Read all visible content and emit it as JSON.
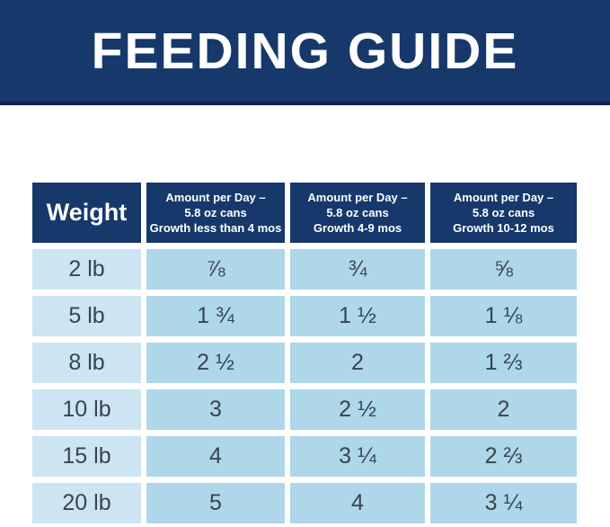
{
  "page": {
    "title": "FEEDING GUIDE"
  },
  "colors": {
    "banner_navy": "#16386b",
    "banner_rule_dark_navy": "#0d2447",
    "header_cell_navy": "#16386b",
    "header_text": "#ffffff",
    "weight_cell_light_blue": "#cde5f2",
    "data_cell_blue": "#aed7e9",
    "cell_text": "#36454e"
  },
  "table": {
    "header": {
      "weight_label": "Weight",
      "columns": [
        {
          "lines": [
            "Amount per Day –",
            "5.8 oz cans",
            "Growth less than 4 mos"
          ]
        },
        {
          "lines": [
            "Amount per Day –",
            "5.8 oz cans",
            "Growth 4-9 mos"
          ]
        },
        {
          "lines": [
            "Amount per Day –",
            "5.8 oz cans",
            "Growth 10-12 mos"
          ]
        }
      ]
    },
    "rows": [
      {
        "weight": "2 lb",
        "values": [
          "⅞",
          "¾",
          "⅝"
        ]
      },
      {
        "weight": "5 lb",
        "values": [
          "1 ¾",
          "1 ½",
          "1 ⅛"
        ]
      },
      {
        "weight": "8 lb",
        "values": [
          "2 ½",
          "2",
          "1 ⅔"
        ]
      },
      {
        "weight": "10 lb",
        "values": [
          "3",
          "2 ½",
          "2"
        ]
      },
      {
        "weight": "15 lb",
        "values": [
          "4",
          "3 ¼",
          "2 ⅔"
        ]
      },
      {
        "weight": "20 lb",
        "values": [
          "5",
          "4",
          "3 ¼"
        ]
      }
    ]
  },
  "chart_data": {
    "type": "table",
    "title": "FEEDING GUIDE",
    "columns": [
      "Weight",
      "Amount per Day – 5.8 oz cans Growth less than 4 mos",
      "Amount per Day – 5.8 oz cans Growth 4-9 mos",
      "Amount per Day – 5.8 oz cans Growth 10-12 mos"
    ],
    "rows": [
      [
        "2 lb",
        "7/8",
        "3/4",
        "5/8"
      ],
      [
        "5 lb",
        "1 3/4",
        "1 1/2",
        "1 1/8"
      ],
      [
        "8 lb",
        "2 1/2",
        "2",
        "1 2/3"
      ],
      [
        "10 lb",
        "3",
        "2 1/2",
        "2"
      ],
      [
        "15 lb",
        "4",
        "3 1/4",
        "2 2/3"
      ],
      [
        "20 lb",
        "5",
        "4",
        "3 1/4"
      ]
    ]
  }
}
